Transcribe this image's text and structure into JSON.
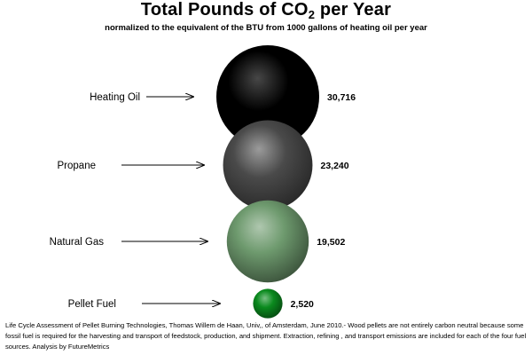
{
  "header": {
    "title_prefix": "Total Pounds of CO",
    "title_subscript": "2",
    "title_suffix": " per Year",
    "subtitle": "normalized to the equivalent of the BTU  from 1000 gallons  of heating oil per year"
  },
  "chart_data": {
    "type": "bubble",
    "title": "Total Pounds of CO2 per Year",
    "subtitle": "normalized to the equivalent of the BTU  from 1000 gallons  of heating oil per year",
    "categories": [
      "Heating Oil",
      "Propane",
      "Natural Gas",
      "Pellet Fuel"
    ],
    "values": [
      30716,
      23240,
      19502,
      2520
    ],
    "value_labels": [
      "30,716",
      "23,240",
      "19,502",
      "2,520"
    ],
    "colors": [
      "#000000",
      "#4a4a4a",
      "#6e9a6e",
      "#0a8a1e"
    ],
    "legend": "none",
    "grid": false
  },
  "footnote": "Life Cycle Assessment of Pellet Burning Technologies, Thomas Willem de Haan, Univ,, of Amsterdam, June 2010.- Wood pellets are not entirely carbon neutral because some fossil fuel is required for the harvesting and transport of feedstock, production, and shipment.  Extraction, refining , and transport emissions are included for each of the four fuel sources. Analysis by FutureMetrics"
}
